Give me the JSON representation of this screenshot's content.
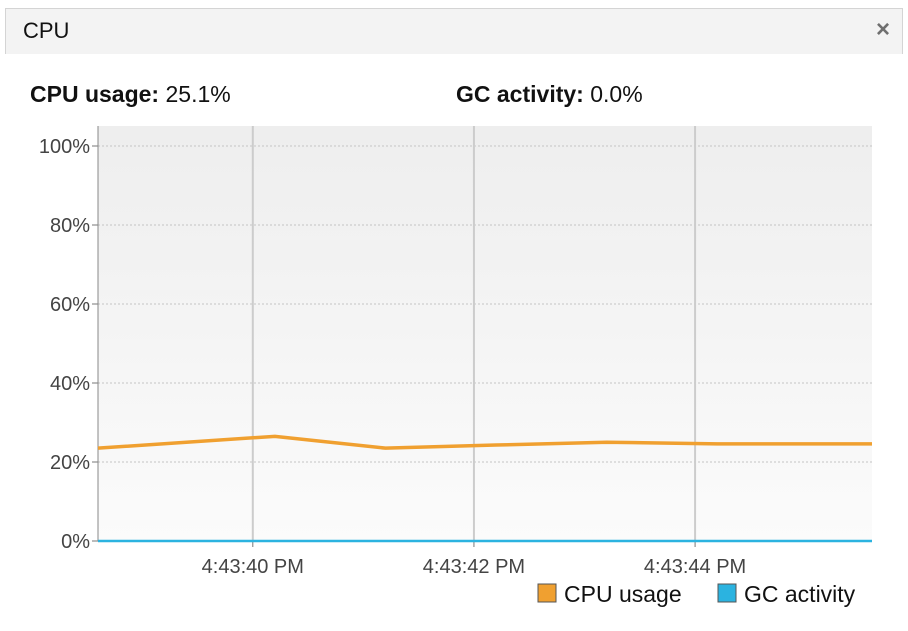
{
  "tab": {
    "title": "CPU",
    "close_glyph": "×"
  },
  "stats": {
    "cpu_label": "CPU usage:",
    "cpu_value": "25.1%",
    "gc_label": "GC activity:",
    "gc_value": "0.0%"
  },
  "colors": {
    "cpu": "#f0a030",
    "gc": "#2bb3e0",
    "plot_bg_top": "#eeeeee",
    "plot_bg_bottom": "#fbfbfb"
  },
  "chart_data": {
    "type": "line",
    "ylim": [
      0,
      100
    ],
    "y_ticks": [
      0,
      20,
      40,
      60,
      80,
      100
    ],
    "y_tick_labels": [
      "0%",
      "20%",
      "40%",
      "60%",
      "80%",
      "100%"
    ],
    "xlim": [
      38.6,
      45.6
    ],
    "x_ticks": [
      40,
      42,
      44
    ],
    "x_tick_labels": [
      "4:43:40 PM",
      "4:43:42 PM",
      "4:43:44 PM"
    ],
    "x_unit": "seconds past 4:43 PM",
    "series": [
      {
        "name": "CPU usage",
        "color": "#f0a030",
        "x": [
          38.6,
          40.2,
          41.2,
          42.2,
          43.2,
          44.2,
          45.6
        ],
        "y": [
          23.5,
          26.5,
          23.5,
          24.3,
          25.0,
          24.6,
          24.6
        ]
      },
      {
        "name": "GC activity",
        "color": "#2bb3e0",
        "x": [
          38.6,
          45.6
        ],
        "y": [
          0,
          0
        ]
      }
    ],
    "legend": {
      "position": "bottom-right",
      "items": [
        "CPU usage",
        "GC activity"
      ]
    },
    "grid": true
  }
}
